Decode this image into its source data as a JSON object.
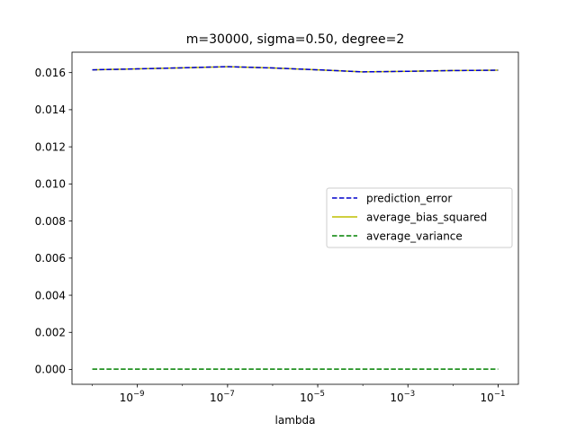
{
  "chart_data": {
    "type": "line",
    "title": "m=30000, sigma=0.50, degree=2",
    "xlabel": "lambda",
    "ylabel": "",
    "x_scale": "log",
    "x": [
      1e-10,
      1e-09,
      1e-08,
      1e-07,
      1e-06,
      1e-05,
      0.0001,
      0.001,
      0.01,
      0.1
    ],
    "xlim": [
      1e-10,
      0.1
    ],
    "x_ticks": [
      {
        "value": 1e-09,
        "base": "10",
        "exp": "−9"
      },
      {
        "value": 1e-07,
        "base": "10",
        "exp": "−7"
      },
      {
        "value": 1e-05,
        "base": "10",
        "exp": "−5"
      },
      {
        "value": 0.001,
        "base": "10",
        "exp": "−3"
      },
      {
        "value": 0.1,
        "base": "10",
        "exp": "−1"
      }
    ],
    "ylim": [
      -0.0008,
      0.0171
    ],
    "y_ticks": [
      "0.000",
      "0.002",
      "0.004",
      "0.006",
      "0.008",
      "0.010",
      "0.012",
      "0.014",
      "0.016"
    ],
    "grid": false,
    "legend_position": "center-right",
    "series": [
      {
        "name": "prediction_error",
        "color": "#0000cc",
        "dash": "dashed",
        "values": [
          0.01615,
          0.0162,
          0.01626,
          0.01632,
          0.01625,
          0.01615,
          0.01604,
          0.01607,
          0.01611,
          0.01613
        ]
      },
      {
        "name": "average_bias_squared",
        "color": "#bfbf00",
        "dash": "solid",
        "values": [
          0.01615,
          0.0162,
          0.01626,
          0.01632,
          0.01625,
          0.01615,
          0.01604,
          0.01607,
          0.01611,
          0.01613
        ]
      },
      {
        "name": "average_variance",
        "color": "#008000",
        "dash": "dashed",
        "values": [
          2e-05,
          2e-05,
          2e-05,
          2e-05,
          2e-05,
          2e-05,
          2e-05,
          2e-05,
          2e-05,
          2e-05
        ]
      }
    ]
  }
}
